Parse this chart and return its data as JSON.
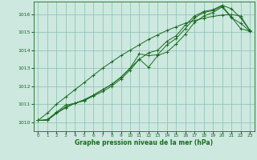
{
  "xlabel": "Graphe pression niveau de la mer (hPa)",
  "bg_color": "#cce8df",
  "grid_color": "#88bfb0",
  "line_color": "#1a6b20",
  "xlim": [
    -0.5,
    23.5
  ],
  "ylim": [
    1009.5,
    1016.7
  ],
  "xticks": [
    0,
    1,
    2,
    3,
    4,
    5,
    6,
    7,
    8,
    9,
    10,
    11,
    12,
    13,
    14,
    15,
    16,
    17,
    18,
    19,
    20,
    21,
    22,
    23
  ],
  "yticks": [
    1010,
    1011,
    1012,
    1013,
    1014,
    1015,
    1016
  ],
  "lines": [
    [
      1010.1,
      1010.1,
      1010.5,
      1010.8,
      1011.05,
      1011.2,
      1011.45,
      1011.7,
      1012.0,
      1012.4,
      1012.9,
      1013.5,
      1013.85,
      1014.0,
      1014.5,
      1014.8,
      1015.4,
      1015.9,
      1016.15,
      1016.25,
      1016.5,
      1016.3,
      1015.8,
      1015.1
    ],
    [
      1010.1,
      1010.1,
      1010.5,
      1010.85,
      1011.05,
      1011.25,
      1011.5,
      1011.8,
      1012.1,
      1012.5,
      1013.0,
      1013.8,
      1013.7,
      1013.75,
      1014.3,
      1014.65,
      1015.2,
      1015.8,
      1016.1,
      1016.2,
      1016.45,
      1015.85,
      1015.2,
      1015.05
    ],
    [
      1010.1,
      1010.15,
      1010.55,
      1010.95,
      1011.05,
      1011.2,
      1011.5,
      1011.8,
      1012.1,
      1012.5,
      1013.0,
      1013.5,
      1013.05,
      1013.7,
      1013.9,
      1014.35,
      1014.9,
      1015.55,
      1015.9,
      1016.1,
      1016.4,
      1015.8,
      1015.5,
      1015.05
    ],
    [
      1010.1,
      1010.5,
      1011.0,
      1011.4,
      1011.8,
      1012.2,
      1012.6,
      1013.0,
      1013.35,
      1013.7,
      1014.0,
      1014.3,
      1014.6,
      1014.85,
      1015.1,
      1015.3,
      1015.5,
      1015.65,
      1015.78,
      1015.88,
      1015.95,
      1015.98,
      1015.9,
      1015.1
    ]
  ],
  "marker_sizes": [
    2.5,
    2.5,
    2.5,
    2.5
  ]
}
